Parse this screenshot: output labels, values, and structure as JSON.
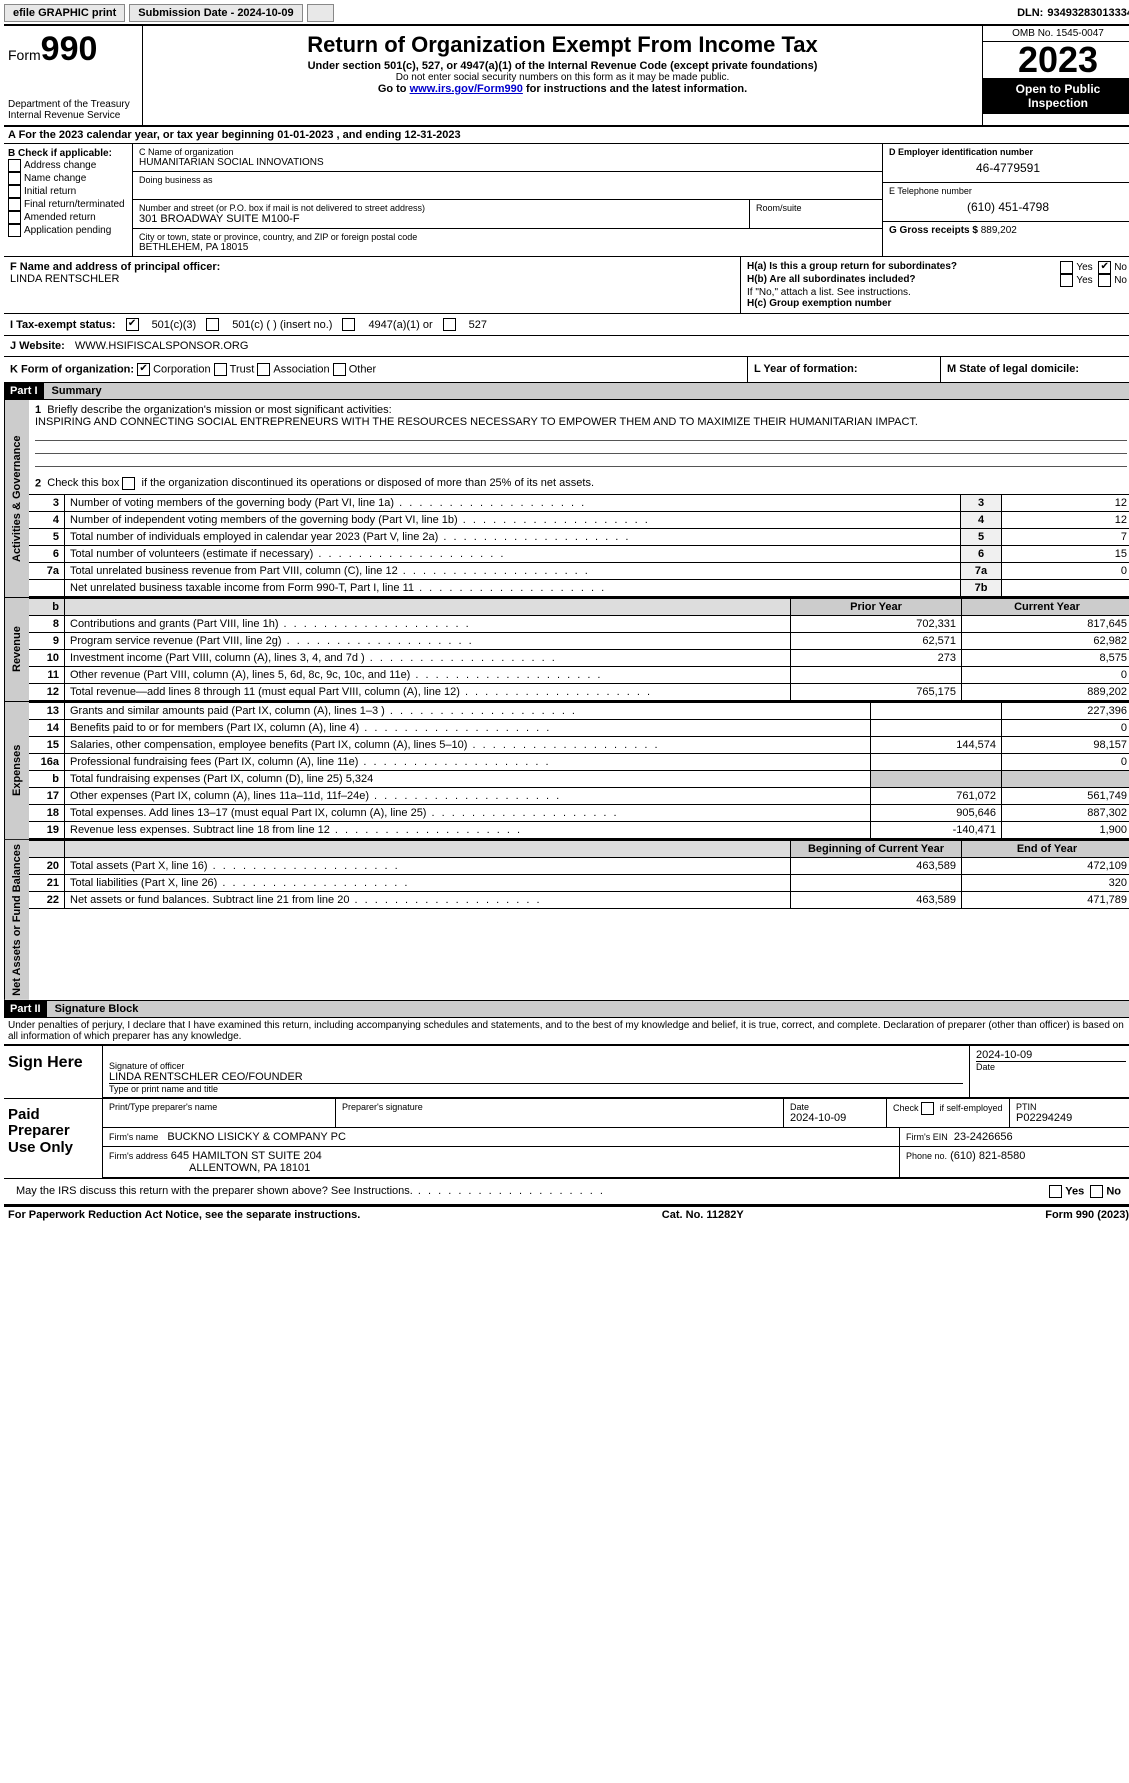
{
  "topbar": {
    "efile": "efile GRAPHIC print",
    "submission_label": "Submission Date - 2024-10-09",
    "dln_label": "DLN:",
    "dln": "93493283013334"
  },
  "header": {
    "form_prefix": "Form",
    "form_num": "990",
    "dept": "Department of the Treasury",
    "irs": "Internal Revenue Service",
    "title": "Return of Organization Exempt From Income Tax",
    "sub1": "Under section 501(c), 527, or 4947(a)(1) of the Internal Revenue Code (except private foundations)",
    "sub2": "Do not enter social security numbers on this form as it may be made public.",
    "sub3_pre": "Go to ",
    "sub3_link": "www.irs.gov/Form990",
    "sub3_post": " for instructions and the latest information.",
    "omb": "OMB No. 1545-0047",
    "year": "2023",
    "inspect": "Open to Public Inspection"
  },
  "row_a": "A  For the 2023 calendar year, or tax year beginning 01-01-2023    , and ending 12-31-2023",
  "box_b": {
    "title": "B Check if applicable:",
    "items": [
      "Address change",
      "Name change",
      "Initial return",
      "Final return/terminated",
      "Amended return",
      "Application pending"
    ]
  },
  "box_c": {
    "name_lbl": "C Name of organization",
    "name": "HUMANITARIAN SOCIAL INNOVATIONS",
    "dba_lbl": "Doing business as",
    "street_lbl": "Number and street (or P.O. box if mail is not delivered to street address)",
    "street": "301 BROADWAY SUITE M100-F",
    "room_lbl": "Room/suite",
    "city_lbl": "City or town, state or province, country, and ZIP or foreign postal code",
    "city": "BETHLEHEM, PA  18015"
  },
  "box_d": {
    "lbl": "D Employer identification number",
    "val": "46-4779591"
  },
  "box_e": {
    "lbl": "E Telephone number",
    "val": "(610) 451-4798"
  },
  "box_g": {
    "lbl": "G Gross receipts $",
    "val": "889,202"
  },
  "box_f": {
    "lbl": "F  Name and address of principal officer:",
    "name": "LINDA RENTSCHLER"
  },
  "box_h": {
    "a": "H(a)  Is this a group return for subordinates?",
    "b": "H(b)  Are all subordinates included?",
    "b_note": "If \"No,\" attach a list. See instructions.",
    "c": "H(c)  Group exemption number",
    "yes": "Yes",
    "no": "No"
  },
  "line_i": {
    "lbl": "I    Tax-exempt status:",
    "opts": [
      "501(c)(3)",
      "501(c) (  ) (insert no.)",
      "4947(a)(1) or",
      "527"
    ]
  },
  "line_j": {
    "lbl": "J   Website:",
    "val": "WWW.HSIFISCALSPONSOR.ORG"
  },
  "line_k": {
    "lbl": "K Form of organization:",
    "opts": [
      "Corporation",
      "Trust",
      "Association",
      "Other"
    ]
  },
  "line_l": "L Year of formation:",
  "line_m": "M State of legal domicile:",
  "part1": {
    "hdr": "Part I",
    "title": "Summary",
    "q1_lbl": "1",
    "q1": "Briefly describe the organization's mission or most significant activities:",
    "mission": "INSPIRING AND CONNECTING SOCIAL ENTREPRENEURS WITH THE RESOURCES NECESSARY TO EMPOWER THEM AND TO MAXIMIZE THEIR HUMANITARIAN IMPACT.",
    "q2_lbl": "2",
    "q2": "Check this box      if the organization discontinued its operations or disposed of more than 25% of its net assets.",
    "tabs": {
      "gov": "Activities & Governance",
      "rev": "Revenue",
      "exp": "Expenses",
      "net": "Net Assets or Fund Balances"
    },
    "gov_rows": [
      {
        "n": "3",
        "d": "Number of voting members of the governing body (Part VI, line 1a)",
        "box": "3",
        "v": "12"
      },
      {
        "n": "4",
        "d": "Number of independent voting members of the governing body (Part VI, line 1b)",
        "box": "4",
        "v": "12"
      },
      {
        "n": "5",
        "d": "Total number of individuals employed in calendar year 2023 (Part V, line 2a)",
        "box": "5",
        "v": "7"
      },
      {
        "n": "6",
        "d": "Total number of volunteers (estimate if necessary)",
        "box": "6",
        "v": "15"
      },
      {
        "n": "7a",
        "d": "Total unrelated business revenue from Part VIII, column (C), line 12",
        "box": "7a",
        "v": "0"
      },
      {
        "n": "",
        "d": "Net unrelated business taxable income from Form 990-T, Part I, line 11",
        "box": "7b",
        "v": ""
      }
    ],
    "col_prior": "Prior Year",
    "col_curr": "Current Year",
    "rev_rows": [
      {
        "n": "8",
        "d": "Contributions and grants (Part VIII, line 1h)",
        "p": "702,331",
        "c": "817,645"
      },
      {
        "n": "9",
        "d": "Program service revenue (Part VIII, line 2g)",
        "p": "62,571",
        "c": "62,982"
      },
      {
        "n": "10",
        "d": "Investment income (Part VIII, column (A), lines 3, 4, and 7d )",
        "p": "273",
        "c": "8,575"
      },
      {
        "n": "11",
        "d": "Other revenue (Part VIII, column (A), lines 5, 6d, 8c, 9c, 10c, and 11e)",
        "p": "",
        "c": "0"
      },
      {
        "n": "12",
        "d": "Total revenue—add lines 8 through 11 (must equal Part VIII, column (A), line 12)",
        "p": "765,175",
        "c": "889,202"
      }
    ],
    "exp_rows": [
      {
        "n": "13",
        "d": "Grants and similar amounts paid (Part IX, column (A), lines 1–3 )",
        "p": "",
        "c": "227,396"
      },
      {
        "n": "14",
        "d": "Benefits paid to or for members (Part IX, column (A), line 4)",
        "p": "",
        "c": "0"
      },
      {
        "n": "15",
        "d": "Salaries, other compensation, employee benefits (Part IX, column (A), lines 5–10)",
        "p": "144,574",
        "c": "98,157"
      },
      {
        "n": "16a",
        "d": "Professional fundraising fees (Part IX, column (A), line 11e)",
        "p": "",
        "c": "0"
      },
      {
        "n": "b",
        "d": "Total fundraising expenses (Part IX, column (D), line 25) 5,324",
        "p": "shade",
        "c": "shade"
      },
      {
        "n": "17",
        "d": "Other expenses (Part IX, column (A), lines 11a–11d, 11f–24e)",
        "p": "761,072",
        "c": "561,749"
      },
      {
        "n": "18",
        "d": "Total expenses. Add lines 13–17 (must equal Part IX, column (A), line 25)",
        "p": "905,646",
        "c": "887,302"
      },
      {
        "n": "19",
        "d": "Revenue less expenses. Subtract line 18 from line 12",
        "p": "-140,471",
        "c": "1,900"
      }
    ],
    "col_begin": "Beginning of Current Year",
    "col_end": "End of Year",
    "net_rows": [
      {
        "n": "20",
        "d": "Total assets (Part X, line 16)",
        "p": "463,589",
        "c": "472,109"
      },
      {
        "n": "21",
        "d": "Total liabilities (Part X, line 26)",
        "p": "",
        "c": "320"
      },
      {
        "n": "22",
        "d": "Net assets or fund balances. Subtract line 21 from line 20",
        "p": "463,589",
        "c": "471,789"
      }
    ]
  },
  "part2": {
    "hdr": "Part II",
    "title": "Signature Block",
    "decl": "Under penalties of perjury, I declare that I have examined this return, including accompanying schedules and statements, and to the best of my knowledge and belief, it is true, correct, and complete. Declaration of preparer (other than officer) is based on all information of which preparer has any knowledge.",
    "sign_here": "Sign Here",
    "sig_officer": "Signature of officer",
    "sig_name": "LINDA RENTSCHLER  CEO/FOUNDER",
    "sig_type": "Type or print name and title",
    "sig_date": "2024-10-09",
    "date_lbl": "Date",
    "paid": "Paid Preparer Use Only",
    "prep_name_lbl": "Print/Type preparer's name",
    "prep_sig_lbl": "Preparer's signature",
    "prep_date": "2024-10-09",
    "self_emp": "Check       if self-employed",
    "ptin_lbl": "PTIN",
    "ptin": "P02294249",
    "firm_name_lbl": "Firm's name",
    "firm_name": "BUCKNO LISICKY & COMPANY PC",
    "firm_ein_lbl": "Firm's EIN",
    "firm_ein": "23-2426656",
    "firm_addr_lbl": "Firm's address",
    "firm_addr1": "645 HAMILTON ST SUITE 204",
    "firm_addr2": "ALLENTOWN, PA  18101",
    "phone_lbl": "Phone no.",
    "phone": "(610) 821-8580",
    "may_irs": "May the IRS discuss this return with the preparer shown above? See Instructions."
  },
  "footer": {
    "left": "For Paperwork Reduction Act Notice, see the separate instructions.",
    "mid": "Cat. No. 11282Y",
    "right": "Form 990 (2023)"
  }
}
